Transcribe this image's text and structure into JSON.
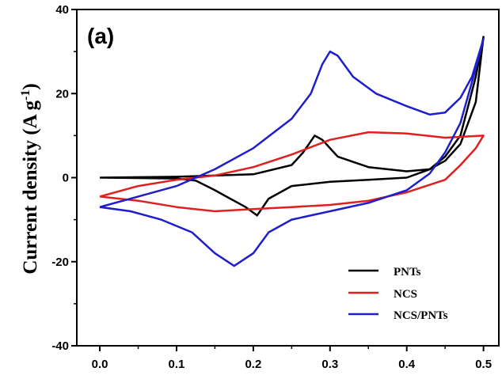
{
  "chart_data": {
    "type": "line",
    "panel_label": "(a)",
    "ylabel": "Current density (A g",
    "ylabel_superscript": "-1",
    "ylabel_close": ")",
    "xlabel": "",
    "xlim": [
      -0.03,
      0.52
    ],
    "ylim": [
      -40,
      40
    ],
    "x_ticks": [
      0.0,
      0.1,
      0.2,
      0.3,
      0.4,
      0.5
    ],
    "x_tick_labels": [
      "0.0",
      "0.1",
      "0.2",
      "0.3",
      "0.4",
      "0.5"
    ],
    "y_ticks": [
      -40,
      -20,
      0,
      20,
      40
    ],
    "y_tick_labels": [
      "-40",
      "-20",
      "0",
      "20",
      "40"
    ],
    "legend_position": "bottom-right",
    "series": [
      {
        "name": "PNTs",
        "color": "#000000",
        "points": [
          [
            0.0,
            0.0
          ],
          [
            0.1,
            0.2
          ],
          [
            0.2,
            0.8
          ],
          [
            0.25,
            3.0
          ],
          [
            0.265,
            6.0
          ],
          [
            0.28,
            10.0
          ],
          [
            0.29,
            9.0
          ],
          [
            0.31,
            5.0
          ],
          [
            0.35,
            2.5
          ],
          [
            0.4,
            1.5
          ],
          [
            0.43,
            2.0
          ],
          [
            0.45,
            4.0
          ],
          [
            0.47,
            8.0
          ],
          [
            0.49,
            18.0
          ],
          [
            0.5,
            33.5
          ],
          [
            0.49,
            24.0
          ],
          [
            0.47,
            10.0
          ],
          [
            0.45,
            5.0
          ],
          [
            0.43,
            2.0
          ],
          [
            0.4,
            0.0
          ],
          [
            0.35,
            -0.5
          ],
          [
            0.3,
            -1.0
          ],
          [
            0.25,
            -2.0
          ],
          [
            0.22,
            -5.0
          ],
          [
            0.205,
            -9.0
          ],
          [
            0.19,
            -7.0
          ],
          [
            0.17,
            -5.0
          ],
          [
            0.15,
            -3.0
          ],
          [
            0.125,
            -0.7
          ],
          [
            0.1,
            -0.2
          ],
          [
            0.05,
            -0.1
          ],
          [
            0.0,
            0.0
          ]
        ]
      },
      {
        "name": "NCS",
        "color": "#e0201e",
        "points": [
          [
            0.0,
            -4.5
          ],
          [
            0.05,
            -2.0
          ],
          [
            0.1,
            -0.5
          ],
          [
            0.15,
            0.5
          ],
          [
            0.2,
            2.5
          ],
          [
            0.25,
            5.5
          ],
          [
            0.3,
            9.0
          ],
          [
            0.35,
            10.8
          ],
          [
            0.4,
            10.5
          ],
          [
            0.45,
            9.5
          ],
          [
            0.5,
            10.0
          ],
          [
            0.49,
            7.0
          ],
          [
            0.47,
            3.0
          ],
          [
            0.45,
            -0.5
          ],
          [
            0.4,
            -3.5
          ],
          [
            0.35,
            -5.5
          ],
          [
            0.3,
            -6.5
          ],
          [
            0.25,
            -7.0
          ],
          [
            0.2,
            -7.5
          ],
          [
            0.15,
            -8.0
          ],
          [
            0.1,
            -7.0
          ],
          [
            0.05,
            -5.5
          ],
          [
            0.0,
            -4.5
          ]
        ]
      },
      {
        "name": "NCS/PNTs",
        "color": "#1e1ecc",
        "points": [
          [
            0.0,
            -7.0
          ],
          [
            0.05,
            -4.5
          ],
          [
            0.1,
            -2.0
          ],
          [
            0.15,
            2.0
          ],
          [
            0.2,
            7.0
          ],
          [
            0.25,
            14.0
          ],
          [
            0.275,
            20.0
          ],
          [
            0.29,
            27.0
          ],
          [
            0.3,
            30.0
          ],
          [
            0.31,
            29.0
          ],
          [
            0.33,
            24.0
          ],
          [
            0.36,
            20.0
          ],
          [
            0.4,
            17.0
          ],
          [
            0.43,
            15.0
          ],
          [
            0.45,
            15.5
          ],
          [
            0.47,
            19.0
          ],
          [
            0.485,
            24.0
          ],
          [
            0.5,
            33.0
          ],
          [
            0.49,
            26.0
          ],
          [
            0.47,
            13.0
          ],
          [
            0.45,
            6.0
          ],
          [
            0.43,
            1.0
          ],
          [
            0.4,
            -3.0
          ],
          [
            0.35,
            -6.0
          ],
          [
            0.3,
            -8.0
          ],
          [
            0.25,
            -10.0
          ],
          [
            0.22,
            -13.0
          ],
          [
            0.2,
            -18.0
          ],
          [
            0.175,
            -21.0
          ],
          [
            0.15,
            -18.0
          ],
          [
            0.12,
            -13.0
          ],
          [
            0.08,
            -10.0
          ],
          [
            0.04,
            -8.0
          ],
          [
            0.0,
            -7.0
          ]
        ]
      }
    ]
  }
}
